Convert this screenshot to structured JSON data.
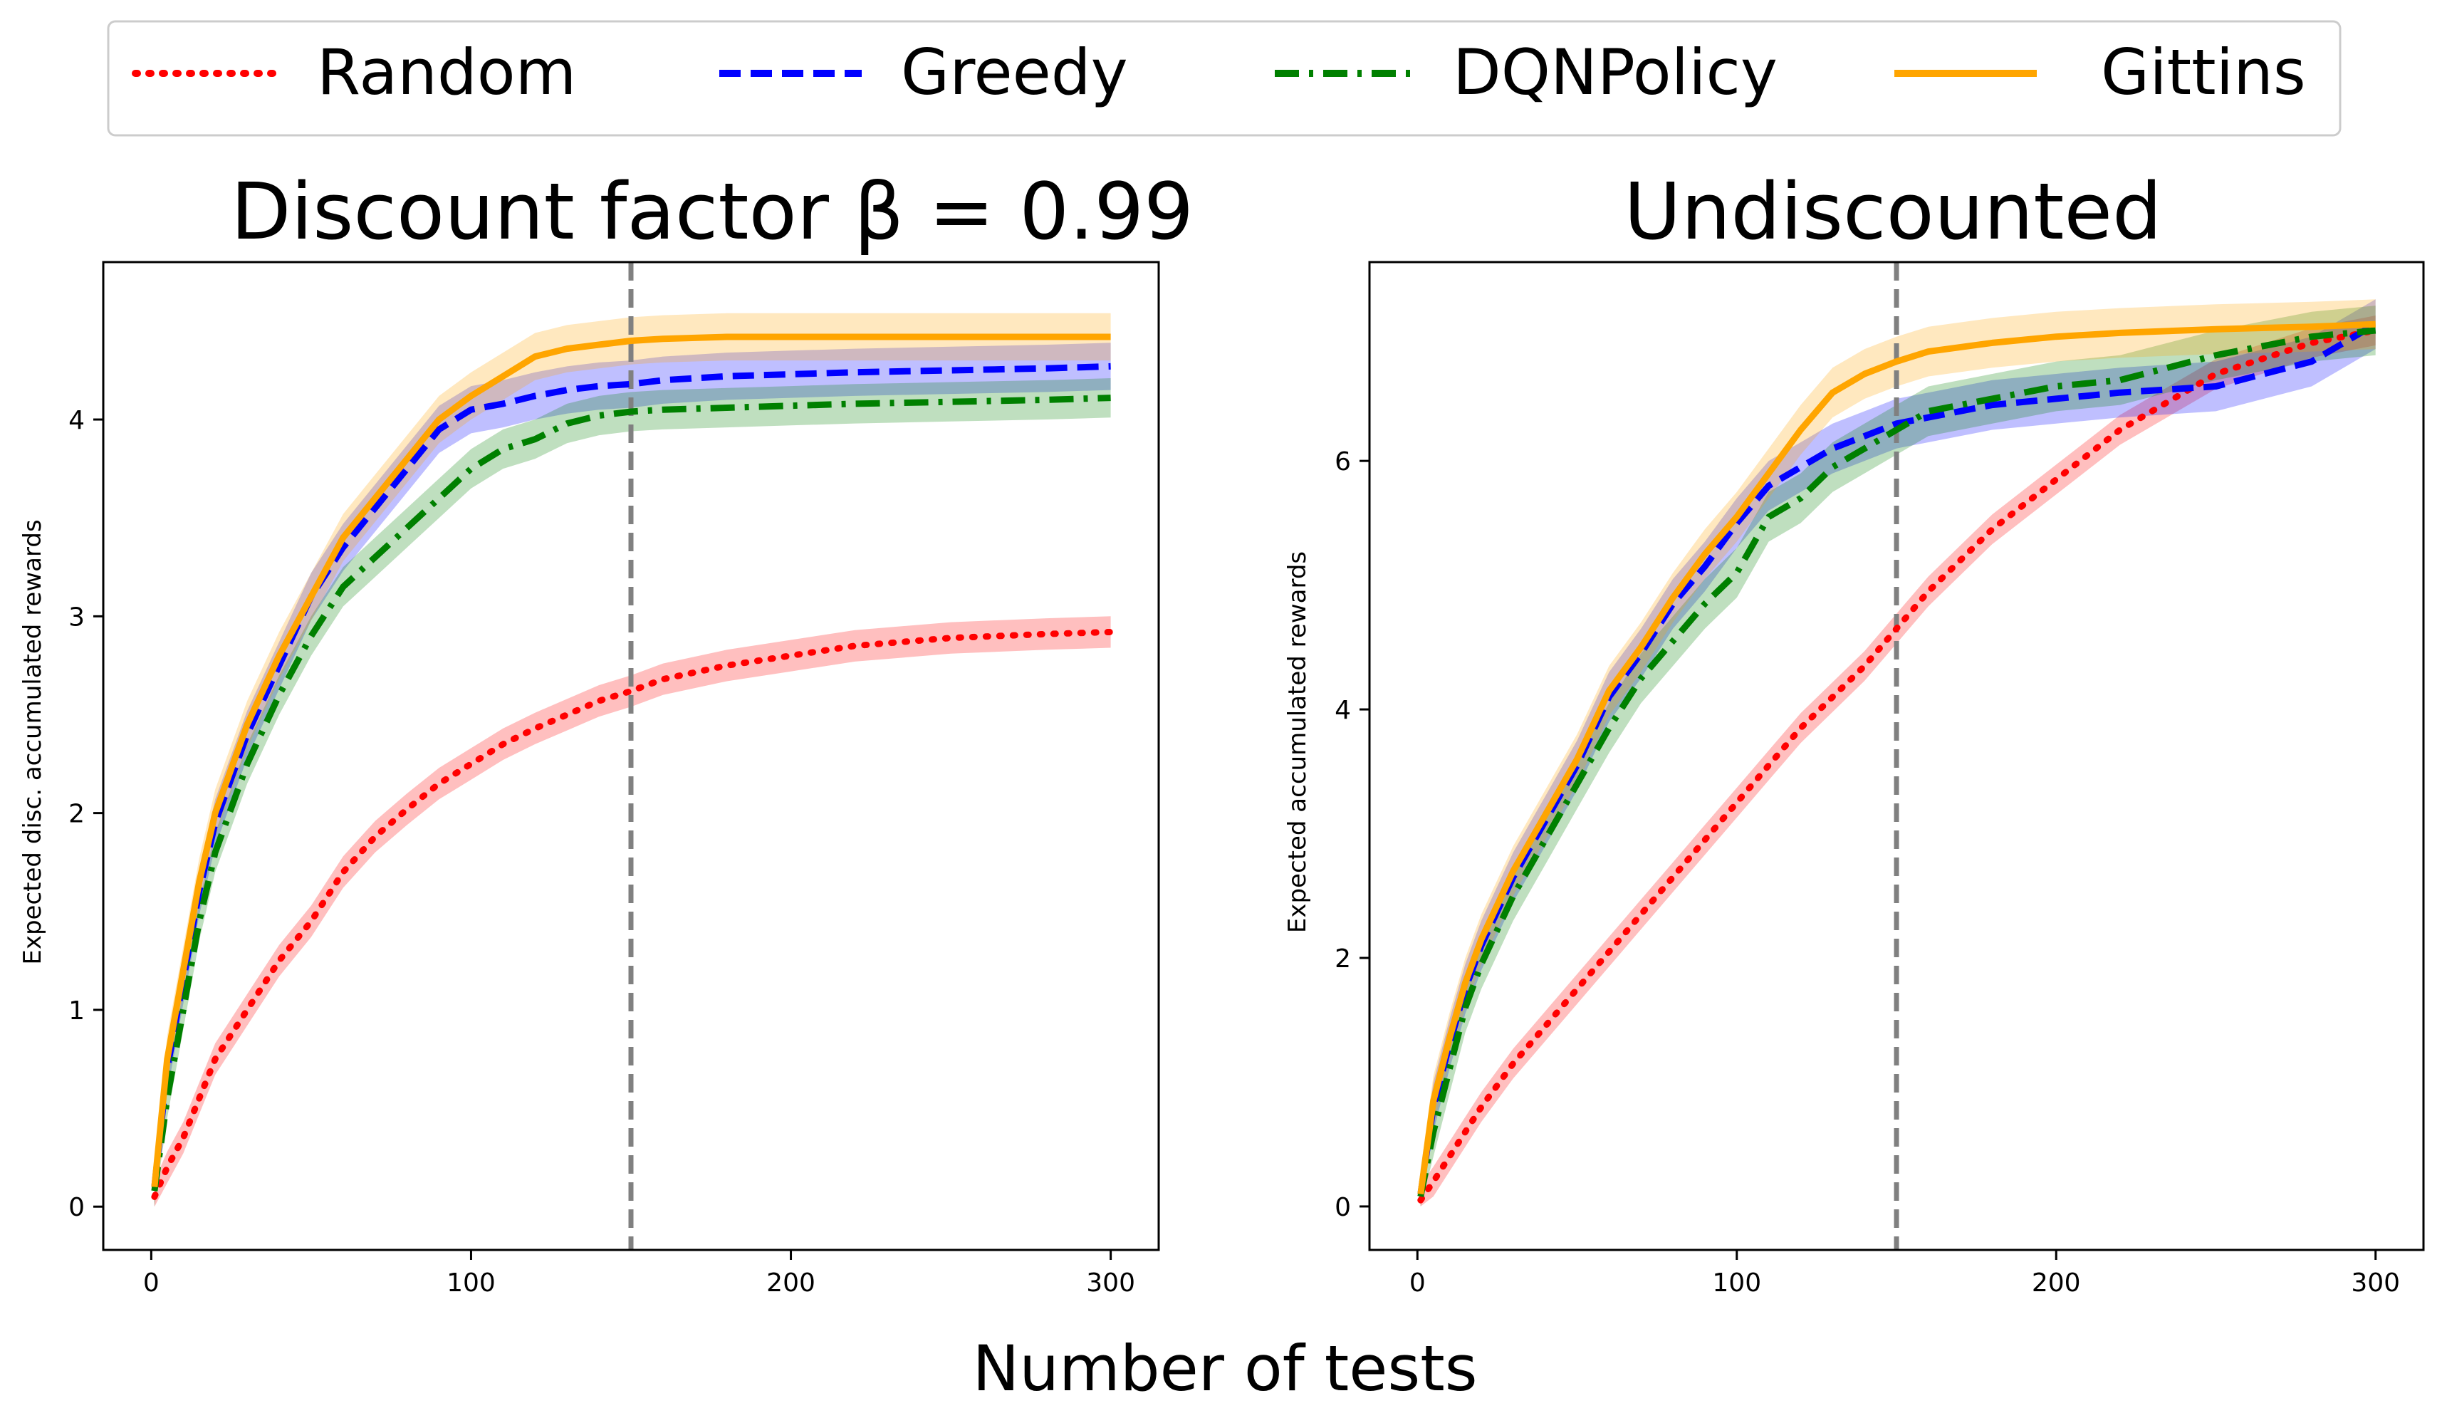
{
  "figure": {
    "xlabel": "Number of tests"
  },
  "legend": {
    "position": "top-center",
    "items": [
      {
        "name": "Random",
        "color": "#ff0000",
        "style": "dotted"
      },
      {
        "name": "Greedy",
        "color": "#0000ff",
        "style": "dashed"
      },
      {
        "name": "DQNPolicy",
        "color": "#008000",
        "style": "dash-dot"
      },
      {
        "name": "Gittins",
        "color": "#ffa500",
        "style": "solid"
      }
    ]
  },
  "reference_line": {
    "x": 150,
    "color": "#808080",
    "style": "dashed"
  },
  "chart_data": [
    {
      "type": "line",
      "title": "Discount factor β =  0.99",
      "xlabel": "",
      "ylabel": "Expected disc. accumulated rewards",
      "xlim": [
        -15,
        315
      ],
      "ylim": [
        -0.22,
        4.8
      ],
      "xticks": [
        0,
        100,
        200,
        300
      ],
      "yticks": [
        0,
        1,
        2,
        3,
        4
      ],
      "x": [
        1,
        5,
        10,
        15,
        20,
        30,
        40,
        50,
        60,
        70,
        80,
        90,
        100,
        110,
        120,
        130,
        140,
        150,
        160,
        180,
        200,
        220,
        250,
        280,
        300
      ],
      "series": [
        {
          "name": "Random",
          "band": 0.08,
          "values": [
            0.05,
            0.2,
            0.35,
            0.55,
            0.75,
            1.0,
            1.25,
            1.45,
            1.7,
            1.88,
            2.02,
            2.15,
            2.25,
            2.35,
            2.43,
            2.5,
            2.57,
            2.62,
            2.68,
            2.75,
            2.8,
            2.85,
            2.89,
            2.91,
            2.92
          ]
        },
        {
          "name": "Greedy",
          "band": 0.12,
          "values": [
            0.1,
            0.7,
            1.15,
            1.6,
            1.95,
            2.4,
            2.75,
            3.1,
            3.35,
            3.55,
            3.75,
            3.95,
            4.05,
            4.08,
            4.12,
            4.15,
            4.17,
            4.18,
            4.2,
            4.22,
            4.23,
            4.24,
            4.25,
            4.26,
            4.27
          ]
        },
        {
          "name": "DQNPolicy",
          "band": 0.1,
          "values": [
            0.08,
            0.55,
            1.0,
            1.45,
            1.8,
            2.25,
            2.6,
            2.9,
            3.15,
            3.3,
            3.45,
            3.6,
            3.75,
            3.85,
            3.9,
            3.98,
            4.02,
            4.04,
            4.05,
            4.06,
            4.07,
            4.08,
            4.09,
            4.1,
            4.11
          ]
        },
        {
          "name": "Gittins",
          "band": 0.12,
          "values": [
            0.1,
            0.75,
            1.2,
            1.65,
            2.0,
            2.45,
            2.8,
            3.1,
            3.4,
            3.6,
            3.8,
            4.0,
            4.12,
            4.22,
            4.32,
            4.36,
            4.38,
            4.4,
            4.41,
            4.42,
            4.42,
            4.42,
            4.42,
            4.42,
            4.42
          ]
        }
      ]
    },
    {
      "type": "line",
      "title": "Undiscounted",
      "xlabel": "",
      "ylabel": "Expected accumulated rewards",
      "xlim": [
        -15,
        315
      ],
      "ylim": [
        -0.35,
        7.6
      ],
      "xticks": [
        0,
        100,
        200,
        300
      ],
      "yticks": [
        0,
        2,
        4,
        6
      ],
      "x": [
        1,
        5,
        10,
        15,
        20,
        30,
        40,
        50,
        60,
        70,
        80,
        90,
        100,
        110,
        120,
        130,
        140,
        150,
        160,
        180,
        200,
        220,
        250,
        280,
        300
      ],
      "series": [
        {
          "name": "Random",
          "band": 0.12,
          "values": [
            0.05,
            0.2,
            0.4,
            0.6,
            0.8,
            1.15,
            1.45,
            1.75,
            2.05,
            2.35,
            2.65,
            2.95,
            3.25,
            3.55,
            3.85,
            4.1,
            4.35,
            4.65,
            4.95,
            5.45,
            5.85,
            6.25,
            6.7,
            6.95,
            7.05
          ]
        },
        {
          "name": "Greedy",
          "band": 0.2,
          "values": [
            0.1,
            0.8,
            1.3,
            1.75,
            2.1,
            2.65,
            3.1,
            3.55,
            4.1,
            4.45,
            4.85,
            5.15,
            5.5,
            5.8,
            5.95,
            6.1,
            6.2,
            6.3,
            6.35,
            6.45,
            6.5,
            6.55,
            6.6,
            6.8,
            7.1
          ]
        },
        {
          "name": "DQNPolicy",
          "band": 0.2,
          "values": [
            0.08,
            0.6,
            1.1,
            1.6,
            1.95,
            2.5,
            2.95,
            3.4,
            3.85,
            4.25,
            4.55,
            4.85,
            5.1,
            5.55,
            5.7,
            5.95,
            6.1,
            6.25,
            6.4,
            6.5,
            6.6,
            6.65,
            6.85,
            7.0,
            7.05
          ]
        },
        {
          "name": "Gittins",
          "band": 0.2,
          "values": [
            0.1,
            0.85,
            1.35,
            1.8,
            2.15,
            2.7,
            3.15,
            3.6,
            4.15,
            4.5,
            4.9,
            5.25,
            5.55,
            5.9,
            6.25,
            6.55,
            6.7,
            6.8,
            6.88,
            6.95,
            7.0,
            7.03,
            7.06,
            7.08,
            7.1
          ]
        }
      ]
    }
  ]
}
